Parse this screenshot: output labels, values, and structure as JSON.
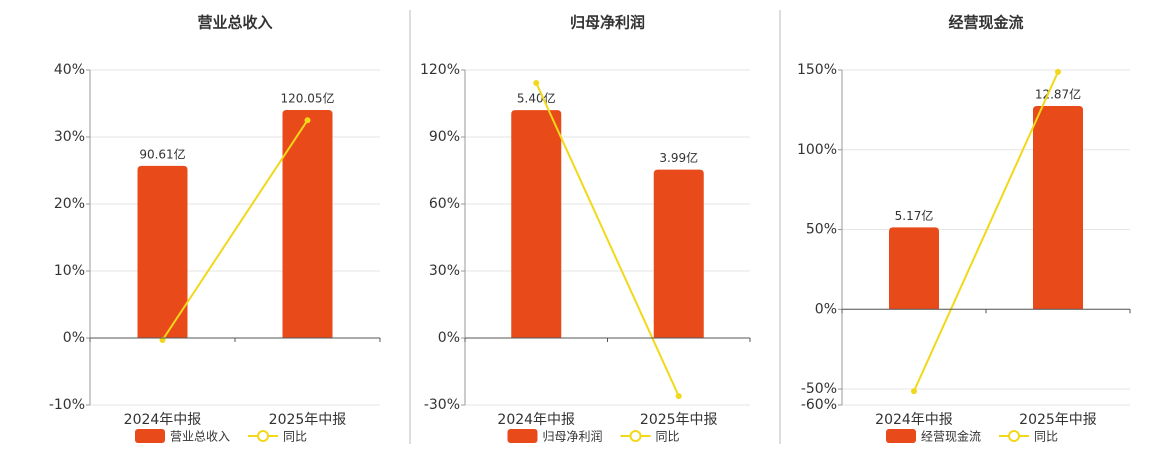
{
  "chart_data": [
    {
      "type": "bar",
      "title": "营业总收入",
      "categories": [
        "2024年中报",
        "2025年中报"
      ],
      "series": [
        {
          "name": "营业总收入",
          "color": "#e84a1a",
          "values": [
            90.61,
            120.05
          ],
          "value_labels": [
            "90.61亿",
            "120.05亿"
          ],
          "axis": "y2"
        },
        {
          "name": "同比",
          "type": "line",
          "color": "#f2d81a",
          "values": [
            -0.3,
            32.5
          ]
        }
      ],
      "ylim": [
        -10,
        40
      ],
      "yticks": [
        {
          "value": -10,
          "label": "-10%"
        },
        {
          "value": 0,
          "label": "0%"
        },
        {
          "value": 10,
          "label": "10%"
        },
        {
          "value": 20,
          "label": "20%"
        },
        {
          "value": 30,
          "label": "30%"
        },
        {
          "value": 40,
          "label": "40%"
        }
      ],
      "y2lim": [
        -35.3,
        141.1
      ],
      "grid": true
    },
    {
      "type": "bar",
      "title": "归母净利润",
      "categories": [
        "2024年中报",
        "2025年中报"
      ],
      "series": [
        {
          "name": "归母净利润",
          "color": "#e84a1a",
          "values": [
            5.4,
            3.99
          ],
          "value_labels": [
            "5.40亿",
            "3.99亿"
          ],
          "axis": "y2"
        },
        {
          "name": "同比",
          "type": "line",
          "color": "#f2d81a",
          "values": [
            114.2,
            -26
          ]
        }
      ],
      "ylim": [
        -30,
        120
      ],
      "yticks": [
        {
          "value": -30,
          "label": "-30%"
        },
        {
          "value": 0,
          "label": "0%"
        },
        {
          "value": 30,
          "label": "30%"
        },
        {
          "value": 60,
          "label": "60%"
        },
        {
          "value": 90,
          "label": "90%"
        },
        {
          "value": 120,
          "label": "120%"
        }
      ],
      "y2lim": [
        -1.59,
        6.35
      ],
      "grid": true
    },
    {
      "type": "bar",
      "title": "经营现金流",
      "categories": [
        "2024年中报",
        "2025年中报"
      ],
      "series": [
        {
          "name": "经营现金流",
          "color": "#e84a1a",
          "values": [
            5.17,
            12.87
          ],
          "value_labels": [
            "5.17亿",
            "12.87亿"
          ],
          "axis": "y2"
        },
        {
          "name": "同比",
          "type": "line",
          "color": "#f2d81a",
          "values": [
            -51.3,
            148.8
          ]
        }
      ],
      "ylim": [
        -60,
        150
      ],
      "yticks": [
        {
          "value": -60,
          "label": "-60%"
        },
        {
          "value": -50,
          "label": "-50%"
        },
        {
          "value": 0,
          "label": "0%"
        },
        {
          "value": 50,
          "label": "50%"
        },
        {
          "value": 100,
          "label": "100%"
        },
        {
          "value": 150,
          "label": "150%"
        }
      ],
      "y2lim": [
        -6.09,
        15.15
      ],
      "grid": true
    }
  ]
}
